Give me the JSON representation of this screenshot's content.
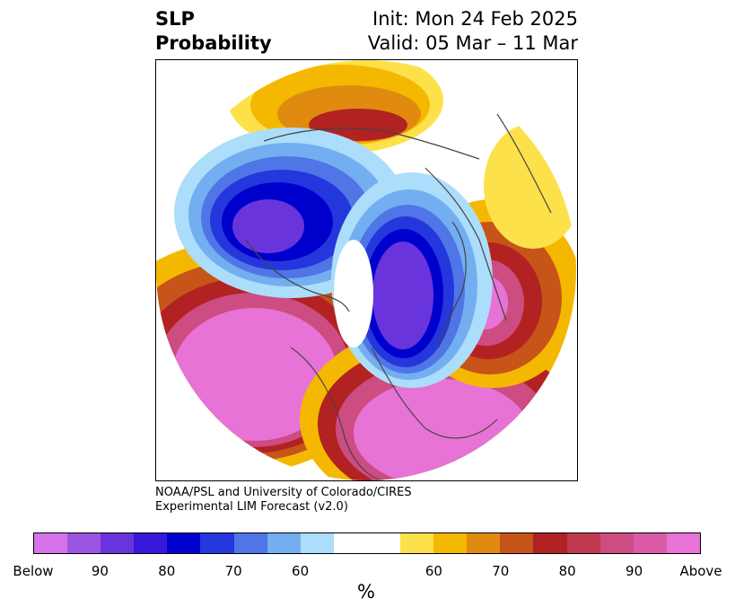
{
  "title": {
    "left_line1": "SLP",
    "left_line2": "Probability",
    "right_line1": "Init: Mon 24 Feb 2025",
    "right_line2": "Valid: 05 Mar – 11 Mar"
  },
  "credits": {
    "line1": "NOAA/PSL and University of Colorado/CIRES",
    "line2": "Experimental LIM Forecast (v2.0)"
  },
  "colorbar": {
    "colors": [
      "#d672ea",
      "#9a55e2",
      "#6a34dc",
      "#3718d8",
      "#0000cd",
      "#2437dc",
      "#4f75e6",
      "#73aef0",
      "#acddfa",
      "#ffffff",
      "#ffffff",
      "#fde14a",
      "#f5b800",
      "#e08b10",
      "#c75418",
      "#b22222",
      "#c0394e",
      "#cd4c82",
      "#db5aa8",
      "#e873d6"
    ],
    "tick_labels": [
      "Below",
      "90",
      "80",
      "70",
      "60",
      "60",
      "70",
      "80",
      "90",
      "Above"
    ],
    "unit": "%"
  },
  "map": {
    "projection": "north-polar-stereographic",
    "variable": "sea level pressure probability",
    "colors": {
      "above_high": "#e873d6",
      "above_mid": "#cd4c82",
      "above_red": "#b22222",
      "above_orange": "#c75418",
      "above_amber": "#e08b10",
      "above_gold": "#f5b800",
      "above_yellow": "#fde14a",
      "below_light": "#acddfa",
      "below_sky": "#73aef0",
      "below_blue": "#4f75e6",
      "below_royal": "#2437dc",
      "below_navy": "#0000cd",
      "below_indigo": "#3718d8",
      "below_violet": "#6a34dc",
      "coastline": "#444444"
    }
  }
}
